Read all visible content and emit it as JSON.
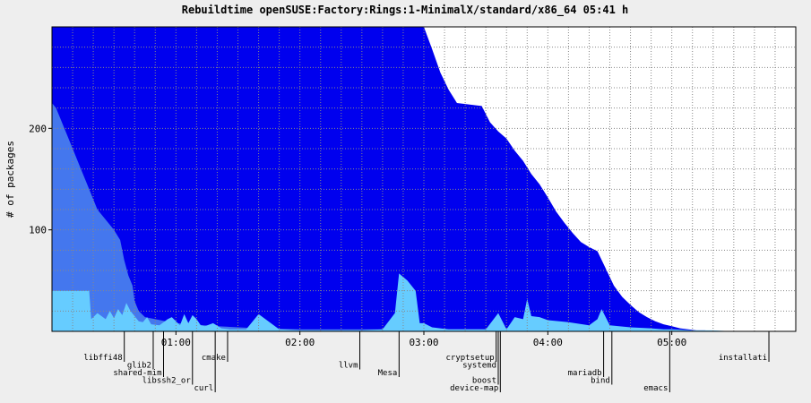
{
  "chart_data": {
    "type": "area",
    "title": "Rebuildtime openSUSE:Factory:Rings:1-MinimalX/standard/x86_64 05:41 h",
    "ylabel": "# of packages",
    "xlabel": "",
    "x_unit": "minutes",
    "xlim": [
      0,
      360
    ],
    "ylim": [
      0,
      300
    ],
    "x_ticks": [
      {
        "value": 60,
        "label": "01:00"
      },
      {
        "value": 120,
        "label": "02:00"
      },
      {
        "value": 180,
        "label": "03:00"
      },
      {
        "value": 240,
        "label": "04:00"
      },
      {
        "value": 300,
        "label": "05:00"
      }
    ],
    "y_ticks": [
      {
        "value": 100,
        "label": "100"
      },
      {
        "value": 200,
        "label": "200"
      }
    ],
    "grid": true,
    "colors": {
      "plot_bg": "#ffffff",
      "page_bg": "#eeeeee",
      "grid": "#888888",
      "total": "#0000ee",
      "waiting": "#4477ee",
      "building": "#66ccff"
    },
    "series": [
      {
        "key": "total",
        "x": [
          0,
          20,
          40,
          80,
          110,
          160,
          180,
          184,
          188,
          192,
          196,
          200,
          204,
          208,
          212,
          216,
          220,
          224,
          228,
          232,
          236,
          240,
          244,
          248,
          252,
          256,
          260,
          264,
          268,
          272,
          276,
          280,
          284,
          288,
          292,
          296,
          300,
          304,
          308,
          312,
          316,
          320,
          324,
          328
        ],
        "values": [
          300,
          300,
          300,
          300,
          300,
          300,
          300,
          278,
          255,
          238,
          225,
          224,
          223,
          222,
          206,
          197,
          190,
          178,
          168,
          155,
          145,
          132,
          118,
          107,
          97,
          88,
          83,
          79,
          62,
          45,
          34,
          26,
          19,
          14,
          10,
          7,
          5,
          3,
          2,
          1,
          1,
          0,
          0,
          0
        ]
      },
      {
        "key": "waiting",
        "x": [
          0,
          2,
          6,
          10,
          14,
          18,
          22,
          26,
          30,
          33,
          35,
          37,
          39,
          40,
          41,
          42,
          45,
          50,
          55,
          60,
          80,
          100,
          120,
          160,
          180,
          200,
          220,
          240,
          260,
          280,
          300,
          320,
          328
        ],
        "values": [
          225,
          220,
          200,
          180,
          160,
          140,
          120,
          110,
          100,
          90,
          70,
          55,
          45,
          30,
          25,
          20,
          14,
          12,
          10,
          8,
          5,
          3,
          2,
          2,
          2,
          2,
          2,
          2,
          2,
          2,
          1,
          0,
          0
        ]
      },
      {
        "key": "building",
        "x": [
          0,
          18,
          19,
          22,
          26,
          28,
          30,
          32,
          34,
          36,
          38,
          40,
          42,
          44,
          46,
          48,
          52,
          56,
          58,
          62,
          64,
          66,
          68,
          70,
          72,
          74,
          78,
          82,
          86,
          90,
          94,
          100,
          110,
          120,
          130,
          140,
          150,
          160,
          166,
          168,
          172,
          176,
          178,
          180,
          184,
          188,
          192,
          200,
          210,
          216,
          220,
          224,
          228,
          230,
          232,
          236,
          240,
          250,
          260,
          264,
          266,
          270,
          280,
          290,
          296,
          300,
          310,
          320,
          330,
          340,
          345
        ],
        "values": [
          40,
          40,
          12,
          18,
          12,
          20,
          13,
          22,
          16,
          28,
          20,
          15,
          10,
          9,
          14,
          7,
          6,
          12,
          14,
          6,
          17,
          8,
          16,
          12,
          6,
          5,
          8,
          3,
          2,
          2,
          2,
          17,
          2,
          1,
          1,
          1,
          1,
          2,
          18,
          57,
          50,
          40,
          8,
          8,
          4,
          3,
          2,
          2,
          2,
          18,
          2,
          14,
          12,
          32,
          15,
          14,
          11,
          9,
          6,
          12,
          22,
          6,
          4,
          3,
          2,
          2,
          1,
          1,
          0,
          0,
          0
        ]
      }
    ],
    "annotations": [
      {
        "x": 35,
        "label": "libffi48",
        "row": 1
      },
      {
        "x": 49,
        "label": "glib2",
        "row": 2
      },
      {
        "x": 54,
        "label": "shared-mim",
        "row": 3
      },
      {
        "x": 68,
        "label": "libssh2_or",
        "row": 4
      },
      {
        "x": 79,
        "label": "curl",
        "row": 5
      },
      {
        "x": 85,
        "label": "cmake",
        "row": 1
      },
      {
        "x": 149,
        "label": "llvm",
        "row": 2
      },
      {
        "x": 168,
        "label": "Mesa",
        "row": 3
      },
      {
        "x": 215,
        "label": "cryptsetup",
        "row": 1
      },
      {
        "x": 216,
        "label": "systemd",
        "row": 2
      },
      {
        "x": 216,
        "label": "boost",
        "row": 4
      },
      {
        "x": 217,
        "label": "device-map",
        "row": 5
      },
      {
        "x": 267,
        "label": "mariadb",
        "row": 3
      },
      {
        "x": 271,
        "label": "bind",
        "row": 4
      },
      {
        "x": 299,
        "label": "emacs",
        "row": 5
      },
      {
        "x": 347,
        "label": "installati",
        "row": 1
      }
    ]
  }
}
